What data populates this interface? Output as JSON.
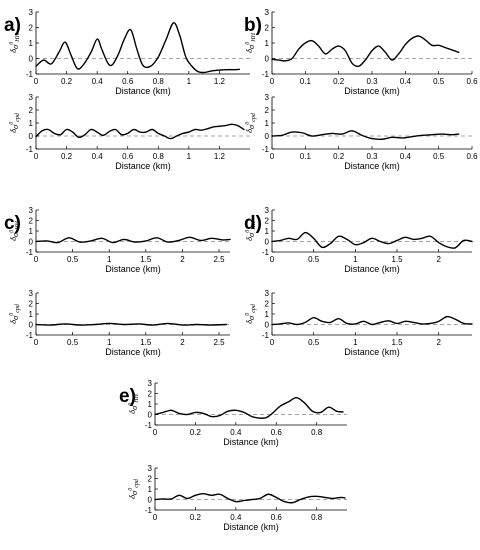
{
  "chart_data": [
    {
      "id": "a1",
      "panel_label": "a)",
      "type": "line",
      "xlabel": "Distance (km)",
      "ylabel": "δσ0HH",
      "xlim": [
        0,
        1.4
      ],
      "ylim": [
        -1,
        3
      ],
      "xticks": [
        0,
        0.2,
        0.4,
        0.6,
        0.8,
        1,
        1.2
      ],
      "xtick_labels": [
        "0",
        "0.2",
        "0.4",
        "0.6",
        "0.8",
        "1",
        "1.2"
      ],
      "yticks": [
        -1,
        0,
        1,
        2,
        3
      ],
      "ytick_labels": [
        "-1",
        "0",
        "1",
        "2",
        "3"
      ],
      "zero_line": true,
      "x": [
        0,
        0.05,
        0.1,
        0.15,
        0.19,
        0.23,
        0.27,
        0.31,
        0.36,
        0.4,
        0.43,
        0.47,
        0.5,
        0.54,
        0.58,
        0.62,
        0.66,
        0.7,
        0.75,
        0.8,
        0.85,
        0.9,
        0.94,
        0.98,
        1.02,
        1.06,
        1.1,
        1.15,
        1.2,
        1.25,
        1.3,
        1.33
      ],
      "y": [
        -0.5,
        -0.1,
        -0.35,
        0.4,
        1.05,
        0.2,
        -0.65,
        -0.4,
        0.4,
        1.25,
        0.6,
        -0.3,
        -0.4,
        0.3,
        1.3,
        1.85,
        0.6,
        -0.45,
        -0.5,
        0.1,
        1.2,
        2.3,
        1.5,
        0.1,
        -0.5,
        -0.85,
        -0.9,
        -0.8,
        -0.75,
        -0.72,
        -0.72,
        -0.7
      ]
    },
    {
      "id": "a2",
      "panel_label": "",
      "type": "line",
      "xlabel": "Distance (km)",
      "ylabel": "δσ0cpd",
      "xlim": [
        0,
        1.4
      ],
      "ylim": [
        -1,
        3
      ],
      "xticks": [
        0,
        0.2,
        0.4,
        0.6,
        0.8,
        1,
        1.2
      ],
      "xtick_labels": [
        "0",
        "0.2",
        "0.4",
        "0.6",
        "0.8",
        "1",
        "1.2"
      ],
      "yticks": [
        -1,
        0,
        1,
        2,
        3
      ],
      "ytick_labels": [
        "-1",
        "0",
        "1",
        "2",
        "3"
      ],
      "zero_line": true,
      "x": [
        0,
        0.04,
        0.08,
        0.12,
        0.16,
        0.2,
        0.24,
        0.28,
        0.32,
        0.36,
        0.4,
        0.44,
        0.48,
        0.52,
        0.56,
        0.6,
        0.64,
        0.68,
        0.72,
        0.76,
        0.8,
        0.84,
        0.88,
        0.92,
        0.96,
        1.0,
        1.04,
        1.08,
        1.12,
        1.16,
        1.2,
        1.24,
        1.28,
        1.32,
        1.36
      ],
      "y": [
        -0.05,
        0.4,
        0.5,
        0.2,
        0.1,
        0.5,
        0.3,
        -0.1,
        0.1,
        0.5,
        0.3,
        0.05,
        0.35,
        0.5,
        0.1,
        0.2,
        0.5,
        0.3,
        0.3,
        0.5,
        0.2,
        0.0,
        -0.2,
        0.0,
        0.2,
        0.3,
        0.5,
        0.45,
        0.55,
        0.7,
        0.75,
        0.8,
        0.9,
        0.8,
        0.5
      ]
    },
    {
      "id": "b1",
      "panel_label": "b)",
      "type": "line",
      "xlabel": "Distance (km)",
      "ylabel": "δσ0HH",
      "xlim": [
        0,
        0.6
      ],
      "ylim": [
        -1,
        3
      ],
      "xticks": [
        0,
        0.1,
        0.2,
        0.3,
        0.4,
        0.5,
        0.6
      ],
      "xtick_labels": [
        "0",
        "0.1",
        "0.2",
        "0.3",
        "0.4",
        "0.5",
        "0.6"
      ],
      "yticks": [
        -1,
        0,
        1,
        2,
        3
      ],
      "ytick_labels": [
        "-1",
        "0",
        "1",
        "2",
        "3"
      ],
      "zero_line": true,
      "x": [
        0,
        0.02,
        0.04,
        0.06,
        0.08,
        0.1,
        0.12,
        0.14,
        0.16,
        0.18,
        0.2,
        0.22,
        0.24,
        0.26,
        0.28,
        0.3,
        0.32,
        0.34,
        0.36,
        0.38,
        0.4,
        0.42,
        0.44,
        0.46,
        0.48,
        0.5,
        0.52,
        0.54,
        0.56
      ],
      "y": [
        -0.05,
        -0.1,
        -0.15,
        0.0,
        0.6,
        1.0,
        1.15,
        0.8,
        0.3,
        0.6,
        0.8,
        0.5,
        -0.3,
        -0.5,
        -0.1,
        0.5,
        0.8,
        0.4,
        -0.1,
        0.3,
        0.9,
        1.3,
        1.45,
        1.2,
        0.85,
        0.85,
        0.7,
        0.55,
        0.4
      ]
    },
    {
      "id": "b2",
      "panel_label": "",
      "type": "line",
      "xlabel": "Distance (km)",
      "ylabel": "δσ0cpd",
      "xlim": [
        0,
        0.6
      ],
      "ylim": [
        -1,
        3
      ],
      "xticks": [
        0,
        0.1,
        0.2,
        0.3,
        0.4,
        0.5,
        0.6
      ],
      "xtick_labels": [
        "0",
        "0.1",
        "0.2",
        "0.3",
        "0.4",
        "0.5",
        "0.6"
      ],
      "yticks": [
        -1,
        0,
        1,
        2,
        3
      ],
      "ytick_labels": [
        "-1",
        "0",
        "1",
        "2",
        "3"
      ],
      "zero_line": true,
      "x": [
        0,
        0.03,
        0.06,
        0.09,
        0.12,
        0.15,
        0.18,
        0.21,
        0.24,
        0.27,
        0.3,
        0.33,
        0.36,
        0.39,
        0.42,
        0.45,
        0.48,
        0.51,
        0.54,
        0.56
      ],
      "y": [
        0.0,
        0.05,
        0.3,
        0.25,
        0.0,
        0.1,
        0.2,
        0.15,
        0.4,
        0.05,
        -0.2,
        -0.25,
        -0.1,
        -0.15,
        -0.05,
        0.05,
        0.1,
        0.15,
        0.1,
        0.15
      ]
    },
    {
      "id": "c1",
      "panel_label": "c)",
      "type": "line",
      "xlabel": "Distance (km)",
      "ylabel": "δσ0HH",
      "xlim": [
        0,
        2.65
      ],
      "ylim": [
        -1,
        3
      ],
      "xticks": [
        0,
        0.5,
        1,
        1.5,
        2,
        2.5
      ],
      "xtick_labels": [
        "0",
        "0.5",
        "1",
        "1.5",
        "2",
        "2.5"
      ],
      "yticks": [
        -1,
        0,
        1,
        2,
        3
      ],
      "ytick_labels": [
        "-1",
        "0",
        "1",
        "2",
        "3"
      ],
      "zero_line": true,
      "x": [
        0,
        0.15,
        0.3,
        0.45,
        0.6,
        0.75,
        0.9,
        1.05,
        1.2,
        1.35,
        1.5,
        1.65,
        1.8,
        1.95,
        2.1,
        2.25,
        2.4,
        2.55,
        2.65
      ],
      "y": [
        0.0,
        0.05,
        -0.1,
        0.35,
        -0.05,
        0.05,
        0.3,
        -0.1,
        0.2,
        -0.05,
        0.05,
        0.35,
        -0.05,
        0.1,
        0.4,
        0.1,
        0.3,
        0.15,
        0.2
      ]
    },
    {
      "id": "c2",
      "panel_label": "",
      "type": "line",
      "xlabel": "Distance (km)",
      "ylabel": "δσ0cpd",
      "xlim": [
        0,
        2.65
      ],
      "ylim": [
        -1,
        3
      ],
      "xticks": [
        0,
        0.5,
        1,
        1.5,
        2,
        2.5
      ],
      "xtick_labels": [
        "0",
        "0.5",
        "1",
        "1.5",
        "2",
        "2.5"
      ],
      "yticks": [
        -1,
        0,
        1,
        2,
        3
      ],
      "ytick_labels": [
        "-1",
        "0",
        "1",
        "2",
        "3"
      ],
      "zero_line": true,
      "x": [
        0,
        0.2,
        0.4,
        0.6,
        0.8,
        1.0,
        1.2,
        1.4,
        1.6,
        1.8,
        2.0,
        2.2,
        2.4,
        2.6
      ],
      "y": [
        0.0,
        -0.05,
        0.05,
        -0.05,
        0.0,
        0.1,
        0.0,
        0.05,
        -0.05,
        0.1,
        -0.05,
        0.0,
        -0.05,
        0.0
      ]
    },
    {
      "id": "d1",
      "panel_label": "d)",
      "type": "line",
      "xlabel": "Distance (km)",
      "ylabel": "δσ0HH",
      "xlim": [
        0,
        2.4
      ],
      "ylim": [
        -1,
        3
      ],
      "xticks": [
        0,
        0.5,
        1,
        1.5,
        2
      ],
      "xtick_labels": [
        "0",
        "0.5",
        "1",
        "1.5",
        "2"
      ],
      "yticks": [
        -1,
        0,
        1,
        2,
        3
      ],
      "ytick_labels": [
        "-1",
        "0",
        "1",
        "2",
        "3"
      ],
      "zero_line": true,
      "x": [
        0,
        0.1,
        0.2,
        0.3,
        0.4,
        0.5,
        0.6,
        0.7,
        0.8,
        0.9,
        1.0,
        1.1,
        1.2,
        1.3,
        1.4,
        1.5,
        1.6,
        1.7,
        1.8,
        1.9,
        2.0,
        2.1,
        2.2,
        2.3,
        2.4
      ],
      "y": [
        0.0,
        0.1,
        0.3,
        0.2,
        0.85,
        0.3,
        -0.55,
        -0.2,
        0.5,
        0.2,
        -0.3,
        -0.1,
        0.3,
        0.0,
        -0.2,
        0.1,
        0.4,
        0.2,
        0.3,
        0.5,
        -0.1,
        -0.5,
        -0.6,
        0.1,
        0.0
      ]
    },
    {
      "id": "d2",
      "panel_label": "",
      "type": "line",
      "xlabel": "Distance (km)",
      "ylabel": "δσ0cpd",
      "xlim": [
        0,
        2.4
      ],
      "ylim": [
        -1,
        3
      ],
      "xticks": [
        0,
        0.5,
        1,
        1.5,
        2
      ],
      "xtick_labels": [
        "0",
        "0.5",
        "1",
        "1.5",
        "2"
      ],
      "yticks": [
        -1,
        0,
        1,
        2,
        3
      ],
      "ytick_labels": [
        "-1",
        "0",
        "1",
        "2",
        "3"
      ],
      "zero_line": true,
      "x": [
        0,
        0.1,
        0.2,
        0.3,
        0.4,
        0.5,
        0.6,
        0.7,
        0.8,
        0.9,
        1.0,
        1.1,
        1.2,
        1.3,
        1.4,
        1.5,
        1.6,
        1.7,
        1.8,
        1.9,
        2.0,
        2.1,
        2.2,
        2.3,
        2.4
      ],
      "y": [
        0.0,
        0.05,
        0.15,
        0.0,
        0.2,
        0.65,
        0.3,
        0.2,
        0.55,
        0.1,
        0.05,
        0.3,
        0.0,
        0.2,
        0.35,
        0.1,
        0.3,
        0.2,
        0.05,
        0.1,
        0.3,
        0.75,
        0.5,
        0.1,
        0.05
      ]
    },
    {
      "id": "e1",
      "panel_label": "e)",
      "type": "line",
      "xlabel": "Distance (km)",
      "ylabel": "δσ0HH",
      "xlim": [
        0,
        0.95
      ],
      "ylim": [
        -1,
        3
      ],
      "xticks": [
        0,
        0.2,
        0.4,
        0.6,
        0.8
      ],
      "xtick_labels": [
        "0",
        "0.2",
        "0.4",
        "0.6",
        "0.8"
      ],
      "yticks": [
        -1,
        0,
        1,
        2,
        3
      ],
      "ytick_labels": [
        "-1",
        "0",
        "1",
        "2",
        "3"
      ],
      "zero_line": true,
      "x": [
        0,
        0.04,
        0.08,
        0.12,
        0.16,
        0.2,
        0.24,
        0.28,
        0.32,
        0.36,
        0.4,
        0.44,
        0.48,
        0.52,
        0.55,
        0.58,
        0.62,
        0.66,
        0.7,
        0.74,
        0.78,
        0.82,
        0.86,
        0.9,
        0.93
      ],
      "y": [
        0.0,
        0.2,
        0.4,
        0.1,
        0.0,
        0.2,
        0.1,
        -0.2,
        -0.1,
        0.3,
        0.4,
        0.2,
        -0.2,
        -0.35,
        -0.3,
        0.1,
        0.8,
        1.2,
        1.6,
        1.1,
        0.3,
        0.2,
        0.7,
        0.3,
        0.25
      ]
    },
    {
      "id": "e2",
      "panel_label": "",
      "type": "line",
      "xlabel": "Distance (km)",
      "ylabel": "δσ0cpd",
      "xlim": [
        0,
        0.95
      ],
      "ylim": [
        -1,
        3
      ],
      "xticks": [
        0,
        0.2,
        0.4,
        0.6,
        0.8
      ],
      "xtick_labels": [
        "0",
        "0.2",
        "0.4",
        "0.6",
        "0.8"
      ],
      "yticks": [
        -1,
        0,
        1,
        2,
        3
      ],
      "ytick_labels": [
        "-1",
        "0",
        "1",
        "2",
        "3"
      ],
      "zero_line": true,
      "x": [
        0,
        0.04,
        0.08,
        0.12,
        0.16,
        0.2,
        0.24,
        0.28,
        0.32,
        0.36,
        0.4,
        0.44,
        0.48,
        0.52,
        0.56,
        0.6,
        0.64,
        0.68,
        0.72,
        0.76,
        0.8,
        0.84,
        0.88,
        0.92,
        0.94
      ],
      "y": [
        0.0,
        0.05,
        0.05,
        0.4,
        0.1,
        0.4,
        0.55,
        0.4,
        0.5,
        0.1,
        -0.2,
        -0.1,
        0.0,
        0.1,
        0.5,
        0.2,
        -0.2,
        -0.3,
        0.0,
        0.25,
        0.3,
        0.2,
        0.1,
        0.2,
        0.15
      ]
    }
  ]
}
